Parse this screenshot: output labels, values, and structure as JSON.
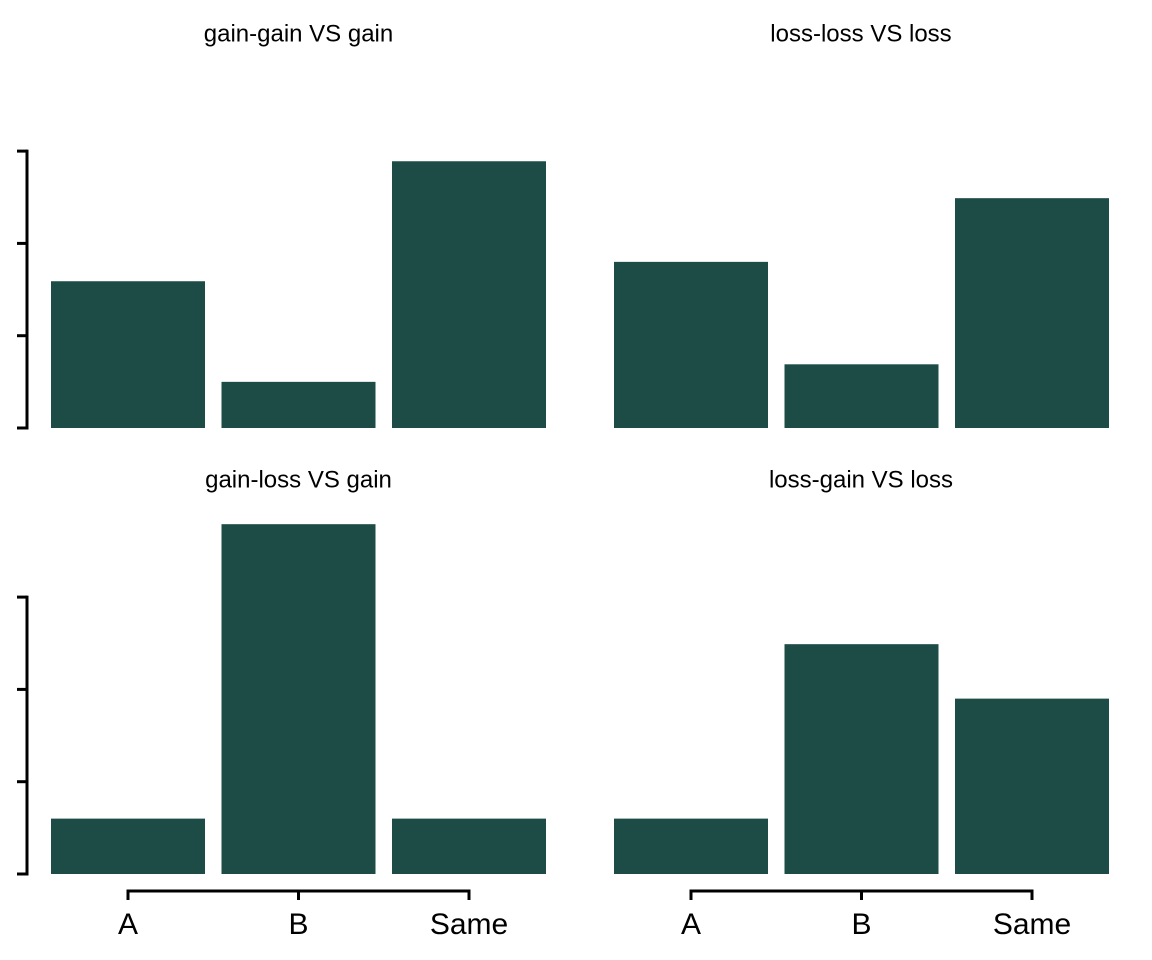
{
  "chart_data": [
    {
      "type": "bar",
      "title": "gain-gain VS gain",
      "categories": [
        null,
        null,
        null
      ],
      "values": [
        1.59,
        0.5,
        2.89
      ],
      "color": "#1c4c45",
      "ylim": [
        0,
        4
      ],
      "yticks": [
        0,
        1,
        2,
        3
      ]
    },
    {
      "type": "bar",
      "title": "loss-loss VS loss",
      "categories": [
        null,
        null,
        null
      ],
      "values": [
        1.8,
        0.69,
        2.49
      ],
      "color": "#1c4c45",
      "ylim": [
        0,
        4
      ],
      "yticks": [
        0,
        1,
        2,
        3
      ]
    },
    {
      "type": "bar",
      "title": "gain-loss VS gain",
      "categories": [
        "A",
        "B",
        "Same"
      ],
      "values": [
        0.6,
        3.79,
        0.6
      ],
      "color": "#1c4c45",
      "ylim": [
        0,
        4
      ],
      "yticks": [
        0,
        1,
        2,
        3
      ]
    },
    {
      "type": "bar",
      "title": "loss-gain VS loss",
      "categories": [
        "A",
        "B",
        "Same"
      ],
      "values": [
        0.6,
        2.49,
        1.9
      ],
      "color": "#1c4c45",
      "ylim": [
        0,
        4
      ],
      "yticks": [
        0,
        1,
        2,
        3
      ]
    }
  ]
}
